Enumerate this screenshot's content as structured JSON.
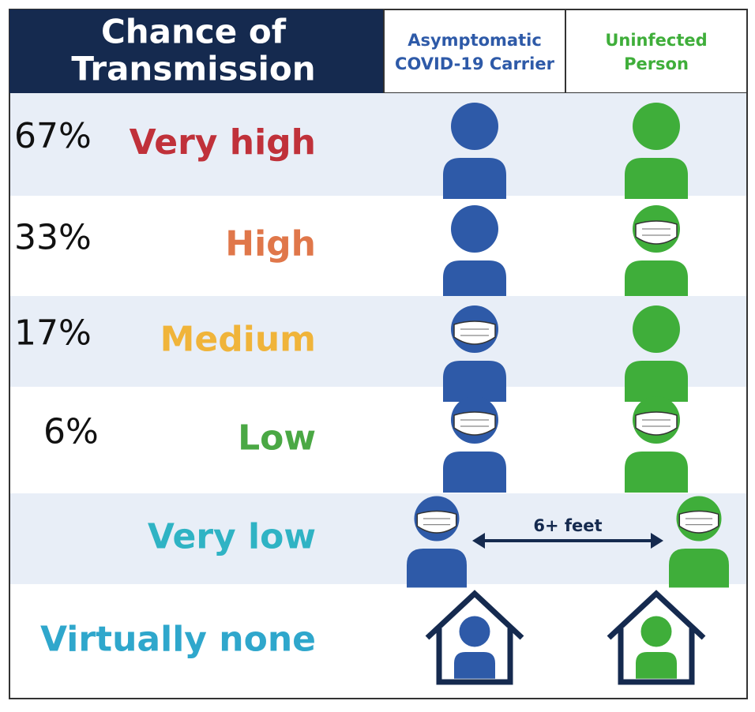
{
  "header": {
    "title_lines": [
      "Chance of",
      "Transmission"
    ],
    "columns": [
      {
        "lines": [
          "Asymptomatic",
          "COVID-19 Carrier"
        ],
        "color": "#2e5aa8"
      },
      {
        "lines": [
          "Uninfected",
          "Person"
        ],
        "color": "#3fae3a"
      }
    ]
  },
  "rows": [
    {
      "percent": "67%",
      "level": "Very high",
      "color": "#c0313a",
      "carrier_mask": false,
      "uninfected_mask": false,
      "scene": "pair"
    },
    {
      "percent": "33%",
      "level": "High",
      "color": "#e0774a",
      "carrier_mask": false,
      "uninfected_mask": true,
      "scene": "pair"
    },
    {
      "percent": "17%",
      "level": "Medium",
      "color": "#f0b43a",
      "carrier_mask": true,
      "uninfected_mask": false,
      "scene": "pair"
    },
    {
      "percent": "6%",
      "level": "Low",
      "color": "#4aa844",
      "carrier_mask": true,
      "uninfected_mask": true,
      "scene": "pair"
    },
    {
      "level": "Very low",
      "color": "#2fb3c4",
      "carrier_mask": true,
      "uninfected_mask": true,
      "scene": "distance",
      "distance_label": "6+ feet"
    },
    {
      "level": "Virtually none",
      "color": "#2fa7cc",
      "carrier_mask": false,
      "uninfected_mask": false,
      "scene": "home"
    }
  ]
}
